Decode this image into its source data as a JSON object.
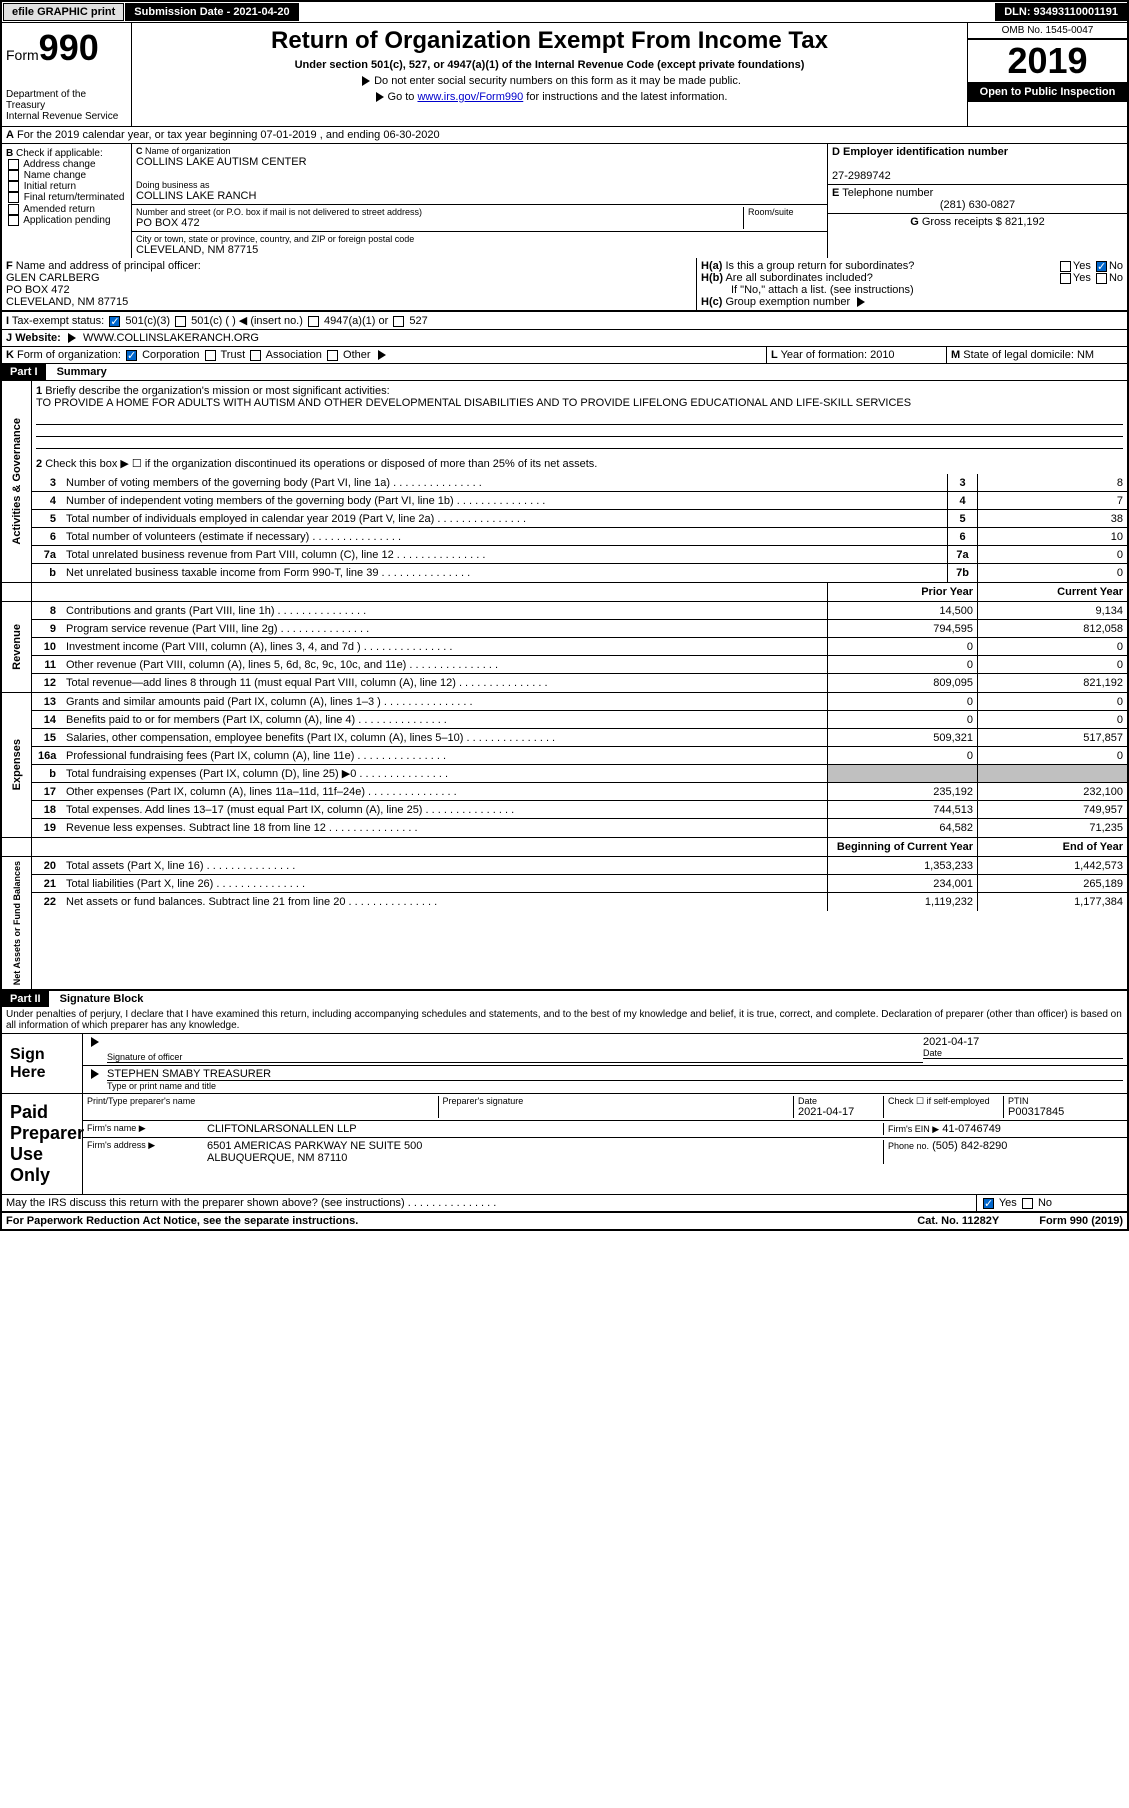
{
  "topbar": {
    "efile": "efile GRAPHIC print",
    "submission_label": "Submission Date - 2021-04-20",
    "dln": "DLN: 93493110001191"
  },
  "header": {
    "form_label": "Form",
    "form_number": "990",
    "dept": "Department of the Treasury",
    "irs": "Internal Revenue Service",
    "title": "Return of Organization Exempt From Income Tax",
    "subtitle": "Under section 501(c), 527, or 4947(a)(1) of the Internal Revenue Code (except private foundations)",
    "note1": "Do not enter social security numbers on this form as it may be made public.",
    "note2_pre": "Go to ",
    "note2_link": "www.irs.gov/Form990",
    "note2_post": " for instructions and the latest information.",
    "omb": "OMB No. 1545-0047",
    "year": "2019",
    "open": "Open to Public Inspection"
  },
  "lineA": "For the 2019 calendar year, or tax year beginning 07-01-2019   , and ending 06-30-2020",
  "sectionB": {
    "check_if": "Check if applicable:",
    "items": [
      "Address change",
      "Name change",
      "Initial return",
      "Final return/terminated",
      "Amended return",
      "Application pending"
    ]
  },
  "sectionC": {
    "name_label": "Name of organization",
    "name": "COLLINS LAKE AUTISM CENTER",
    "dba_label": "Doing business as",
    "dba": "COLLINS LAKE RANCH",
    "address_label": "Number and street (or P.O. box if mail is not delivered to street address)",
    "room_label": "Room/suite",
    "address": "PO BOX 472",
    "city_label": "City or town, state or province, country, and ZIP or foreign postal code",
    "city": "CLEVELAND, NM  87715"
  },
  "sectionD": {
    "label": "Employer identification number",
    "value": "27-2989742"
  },
  "sectionE": {
    "label": "Telephone number",
    "value": "(281) 630-0827"
  },
  "sectionG": {
    "label": "Gross receipts $",
    "value": "821,192"
  },
  "sectionF": {
    "label": "Name and address of principal officer:",
    "name": "GLEN CARLBERG",
    "addr1": "PO BOX 472",
    "addr2": "CLEVELAND, NM  87715"
  },
  "sectionH": {
    "a": "Is this a group return for subordinates?",
    "b": "Are all subordinates included?",
    "b_note": "If \"No,\" attach a list. (see instructions)",
    "c": "Group exemption number"
  },
  "taxexempt": {
    "label": "Tax-exempt status:",
    "c3": "501(c)(3)",
    "c": "501(c) (  )",
    "insert": "(insert no.)",
    "a1": "4947(a)(1) or",
    "527": "527"
  },
  "website": {
    "label": "Website:",
    "value": "WWW.COLLINSLAKERANCH.ORG"
  },
  "sectionK": {
    "label": "Form of organization:",
    "corp": "Corporation",
    "trust": "Trust",
    "assoc": "Association",
    "other": "Other"
  },
  "sectionL": {
    "label": "Year of formation:",
    "value": "2010"
  },
  "sectionM": {
    "label": "State of legal domicile:",
    "value": "NM"
  },
  "part1": {
    "header": "Part I",
    "title": "Summary",
    "line1_label": "Briefly describe the organization's mission or most significant activities:",
    "line1_text": "TO PROVIDE A HOME FOR ADULTS WITH AUTISM AND OTHER DEVELOPMENTAL DISABILITIES AND TO PROVIDE LIFELONG EDUCATIONAL AND LIFE-SKILL SERVICES",
    "line2": "Check this box ▶ ☐ if the organization discontinued its operations or disposed of more than 25% of its net assets.",
    "sections": {
      "activities": "Activities & Governance",
      "revenue": "Revenue",
      "expenses": "Expenses",
      "netassets": "Net Assets or Fund Balances"
    },
    "rows_ag": [
      {
        "n": "3",
        "d": "Number of voting members of the governing body (Part VI, line 1a)",
        "box": "3",
        "v": "8"
      },
      {
        "n": "4",
        "d": "Number of independent voting members of the governing body (Part VI, line 1b)",
        "box": "4",
        "v": "7"
      },
      {
        "n": "5",
        "d": "Total number of individuals employed in calendar year 2019 (Part V, line 2a)",
        "box": "5",
        "v": "38"
      },
      {
        "n": "6",
        "d": "Total number of volunteers (estimate if necessary)",
        "box": "6",
        "v": "10"
      },
      {
        "n": "7a",
        "d": "Total unrelated business revenue from Part VIII, column (C), line 12",
        "box": "7a",
        "v": "0"
      },
      {
        "n": "b",
        "d": "Net unrelated business taxable income from Form 990-T, line 39",
        "box": "7b",
        "v": "0"
      }
    ],
    "col_headers": {
      "prior": "Prior Year",
      "current": "Current Year"
    },
    "rows_rev": [
      {
        "n": "8",
        "d": "Contributions and grants (Part VIII, line 1h)",
        "p": "14,500",
        "c": "9,134"
      },
      {
        "n": "9",
        "d": "Program service revenue (Part VIII, line 2g)",
        "p": "794,595",
        "c": "812,058"
      },
      {
        "n": "10",
        "d": "Investment income (Part VIII, column (A), lines 3, 4, and 7d )",
        "p": "0",
        "c": "0"
      },
      {
        "n": "11",
        "d": "Other revenue (Part VIII, column (A), lines 5, 6d, 8c, 9c, 10c, and 11e)",
        "p": "0",
        "c": "0"
      },
      {
        "n": "12",
        "d": "Total revenue—add lines 8 through 11 (must equal Part VIII, column (A), line 12)",
        "p": "809,095",
        "c": "821,192"
      }
    ],
    "rows_exp": [
      {
        "n": "13",
        "d": "Grants and similar amounts paid (Part IX, column (A), lines 1–3 )",
        "p": "0",
        "c": "0"
      },
      {
        "n": "14",
        "d": "Benefits paid to or for members (Part IX, column (A), line 4)",
        "p": "0",
        "c": "0"
      },
      {
        "n": "15",
        "d": "Salaries, other compensation, employee benefits (Part IX, column (A), lines 5–10)",
        "p": "509,321",
        "c": "517,857"
      },
      {
        "n": "16a",
        "d": "Professional fundraising fees (Part IX, column (A), line 11e)",
        "p": "0",
        "c": "0"
      },
      {
        "n": "b",
        "d": "Total fundraising expenses (Part IX, column (D), line 25) ▶0",
        "p": "grey",
        "c": "grey"
      },
      {
        "n": "17",
        "d": "Other expenses (Part IX, column (A), lines 11a–11d, 11f–24e)",
        "p": "235,192",
        "c": "232,100"
      },
      {
        "n": "18",
        "d": "Total expenses. Add lines 13–17 (must equal Part IX, column (A), line 25)",
        "p": "744,513",
        "c": "749,957"
      },
      {
        "n": "19",
        "d": "Revenue less expenses. Subtract line 18 from line 12",
        "p": "64,582",
        "c": "71,235"
      }
    ],
    "col_headers2": {
      "begin": "Beginning of Current Year",
      "end": "End of Year"
    },
    "rows_na": [
      {
        "n": "20",
        "d": "Total assets (Part X, line 16)",
        "p": "1,353,233",
        "c": "1,442,573"
      },
      {
        "n": "21",
        "d": "Total liabilities (Part X, line 26)",
        "p": "234,001",
        "c": "265,189"
      },
      {
        "n": "22",
        "d": "Net assets or fund balances. Subtract line 21 from line 20",
        "p": "1,119,232",
        "c": "1,177,384"
      }
    ]
  },
  "part2": {
    "header": "Part II",
    "title": "Signature Block",
    "penalty": "Under penalties of perjury, I declare that I have examined this return, including accompanying schedules and statements, and to the best of my knowledge and belief, it is true, correct, and complete. Declaration of preparer (other than officer) is based on all information of which preparer has any knowledge."
  },
  "sign": {
    "label": "Sign Here",
    "officer_label": "Signature of officer",
    "date_label": "Date",
    "date": "2021-04-17",
    "name": "STEPHEN SMABY TREASURER",
    "name_label": "Type or print name and title"
  },
  "paid": {
    "label": "Paid Preparer Use Only",
    "preparer_name_label": "Print/Type preparer's name",
    "preparer_sig_label": "Preparer's signature",
    "date_label": "Date",
    "date": "2021-04-17",
    "check_label": "Check ☐ if self-employed",
    "ptin_label": "PTIN",
    "ptin": "P00317845",
    "firm_name_label": "Firm's name   ▶",
    "firm_name": "CLIFTONLARSONALLEN LLP",
    "firm_ein_label": "Firm's EIN ▶",
    "firm_ein": "41-0746749",
    "firm_addr_label": "Firm's address ▶",
    "firm_addr": "6501 AMERICAS PARKWAY NE SUITE 500",
    "firm_city": "ALBUQUERQUE, NM  87110",
    "phone_label": "Phone no.",
    "phone": "(505) 842-8290"
  },
  "bottom": {
    "discuss": "May the IRS discuss this return with the preparer shown above? (see instructions)",
    "yes": "Yes",
    "no": "No",
    "paperwork": "For Paperwork Reduction Act Notice, see the separate instructions.",
    "catno": "Cat. No. 11282Y",
    "formno": "Form 990 (2019)"
  }
}
